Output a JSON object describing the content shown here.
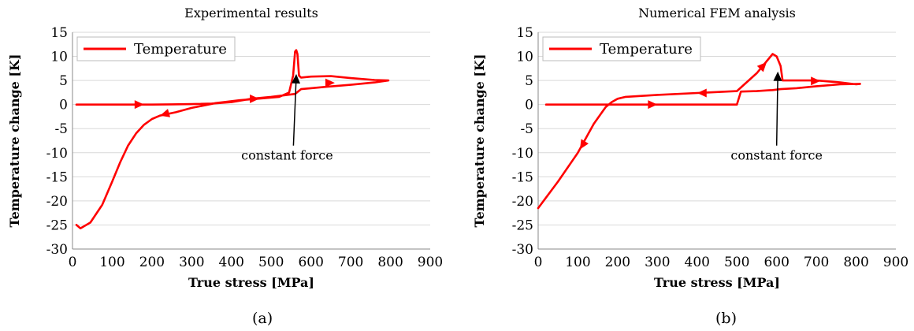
{
  "figure": {
    "captions": [
      "(a)",
      "(b)"
    ]
  },
  "chart_data": [
    {
      "type": "line",
      "title": "Experimental results",
      "xlabel": "True stress [MPa]",
      "ylabel": "Temperature change [K]",
      "xlim": [
        0,
        900
      ],
      "ylim": [
        -30,
        15
      ],
      "xticks": [
        0,
        100,
        200,
        300,
        400,
        500,
        600,
        700,
        800,
        900
      ],
      "yticks": [
        15,
        10,
        5,
        0,
        -5,
        -10,
        -15,
        -20,
        -25,
        -30
      ],
      "grid": "horizontal",
      "legend": {
        "position": "top-left",
        "entries": [
          "Temperature"
        ]
      },
      "color": "#ff0000",
      "series": [
        {
          "name": "Temperature",
          "x": [
            10,
            20,
            45,
            75,
            100,
            120,
            140,
            160,
            180,
            200,
            220,
            260,
            300,
            360,
            420,
            480,
            520,
            545,
            555,
            560,
            563,
            566,
            570,
            575,
            600,
            650,
            700,
            760,
            795,
            760,
            700,
            640,
            600,
            575,
            560,
            540,
            500,
            450,
            400,
            350,
            300,
            250,
            200,
            150,
            100,
            50,
            20,
            10
          ],
          "y": [
            -25,
            -25.7,
            -24.5,
            -20.8,
            -16,
            -12,
            -8.5,
            -6,
            -4.2,
            -3,
            -2.3,
            -1.6,
            -0.7,
            0.3,
            0.9,
            1.3,
            1.6,
            2.5,
            6,
            11,
            11.3,
            10.5,
            6,
            5.6,
            5.8,
            5.9,
            5.5,
            5.1,
            5,
            4.6,
            4.1,
            3.7,
            3.4,
            3.2,
            2.2,
            2,
            1.6,
            1.2,
            0.5,
            0.2,
            0.1,
            0.05,
            0,
            0,
            0,
            0,
            0,
            0
          ]
        }
      ],
      "arrows": [
        {
          "x": 180,
          "y": 0,
          "dir": "right"
        },
        {
          "x": 220,
          "y": -2.3,
          "dir": "left"
        },
        {
          "x": 470,
          "y": 1.2,
          "dir": "right"
        },
        {
          "x": 660,
          "y": 4.5,
          "dir": "right"
        }
      ],
      "annotation": {
        "text": "constant force",
        "target": [
          563,
          7.5
        ],
        "text_pos": [
          540,
          -9.5
        ]
      }
    },
    {
      "type": "line",
      "title": "Numerical FEM analysis",
      "xlabel": "True stress [MPa]",
      "ylabel": "Temperature change [K]",
      "xlim": [
        0,
        900
      ],
      "ylim": [
        -30,
        15
      ],
      "xticks": [
        0,
        100,
        200,
        300,
        400,
        500,
        600,
        700,
        800,
        900
      ],
      "yticks": [
        15,
        10,
        5,
        0,
        -5,
        -10,
        -15,
        -20,
        -25,
        -30
      ],
      "grid": "horizontal",
      "legend": {
        "position": "top-left",
        "entries": [
          "Temperature"
        ]
      },
      "color": "#ff0000",
      "series": [
        {
          "name": "Temperature",
          "x": [
            0,
            50,
            100,
            140,
            170,
            185,
            200,
            220,
            300,
            400,
            500,
            550,
            590,
            600,
            610,
            615,
            640,
            700,
            760,
            800,
            810,
            760,
            700,
            650,
            610,
            600,
            590,
            580,
            550,
            510,
            500,
            450,
            400,
            300,
            200,
            100,
            20
          ],
          "y": [
            -21.5,
            -16,
            -10,
            -4,
            -0.5,
            0.5,
            1.2,
            1.6,
            2.0,
            2.4,
            2.8,
            6.5,
            10.5,
            10,
            8,
            5,
            5,
            5,
            4.6,
            4.2,
            4.3,
            4.2,
            3.8,
            3.4,
            3.2,
            3.1,
            3.0,
            2.95,
            2.8,
            2.7,
            0,
            0,
            0,
            0,
            0,
            0,
            0
          ]
        }
      ],
      "arrows": [
        {
          "x": 105,
          "y": -9.3,
          "dir": "down"
        },
        {
          "x": 400,
          "y": 2.4,
          "dir": "left"
        },
        {
          "x": 575,
          "y": 8.8,
          "dir": "up"
        },
        {
          "x": 710,
          "y": 4.9,
          "dir": "right"
        },
        {
          "x": 300,
          "y": 0,
          "dir": "right"
        }
      ],
      "annotation": {
        "text": "constant force",
        "target": [
          603,
          8
        ],
        "text_pos": [
          600,
          -9.5
        ]
      }
    }
  ]
}
